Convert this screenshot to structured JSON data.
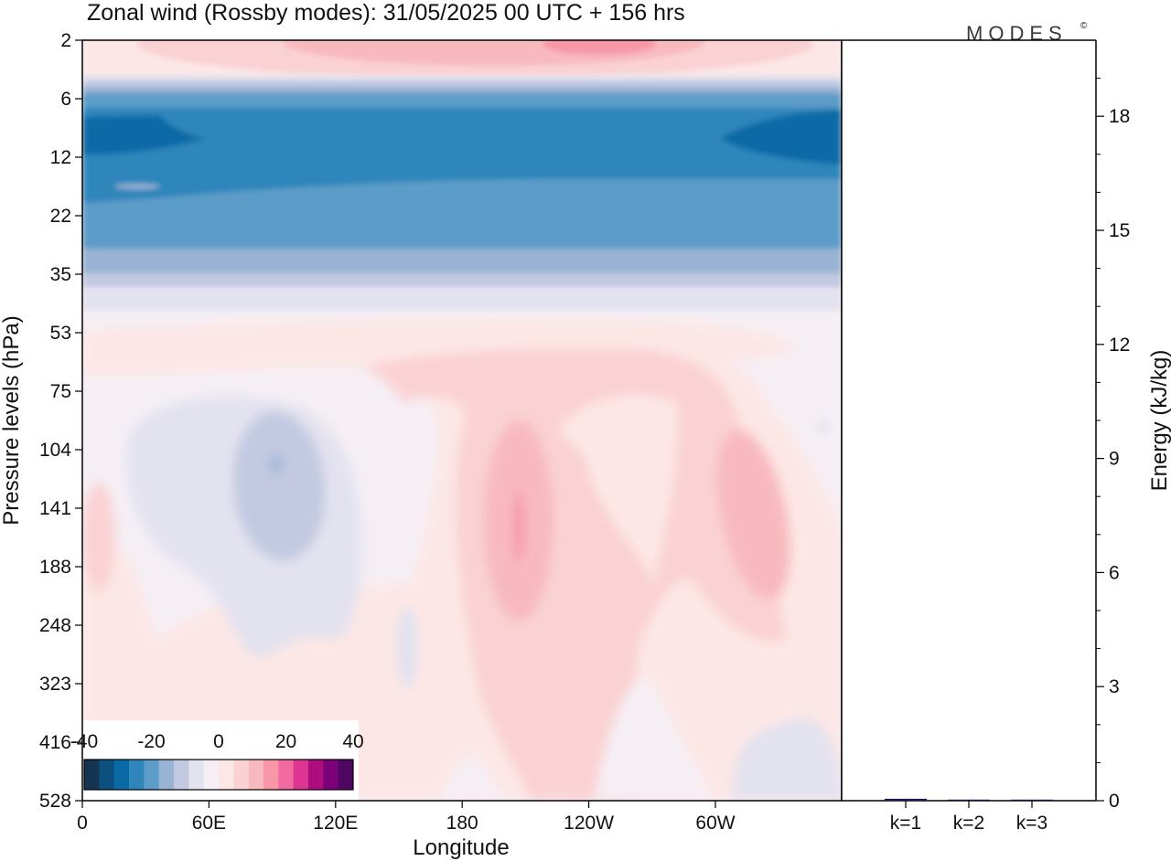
{
  "title": "Zonal wind (Rossby modes):  31/05/2025  00 UTC  + 156 hrs",
  "brand": "MODES",
  "brand_mark": "©",
  "chart_data": [
    {
      "type": "heatmap",
      "xlabel": "Longitude",
      "ylabel": "Pressure levels (hPa)",
      "x_ticks": [
        "0",
        "60E",
        "120E",
        "180",
        "120W",
        "60W"
      ],
      "y_ticks": [
        "2",
        "6",
        "12",
        "22",
        "35",
        "53",
        "75",
        "104",
        "141",
        "188",
        "248",
        "323",
        "416",
        "528"
      ],
      "colorbar": {
        "tick_labels": [
          "-40",
          "-20",
          "0",
          "20",
          "40"
        ],
        "range": [
          -40,
          40
        ],
        "colors": [
          "#14344f",
          "#0c507f",
          "#0a6aa6",
          "#2e86bb",
          "#5c9cc8",
          "#98b3d3",
          "#c2c9e1",
          "#e3e2ef",
          "#f5eff5",
          "#fde7e6",
          "#fad2d3",
          "#f8b9be",
          "#f797a7",
          "#f06a9f",
          "#dc3692",
          "#ae0d7f",
          "#7a0177",
          "#4e0660"
        ]
      }
    },
    {
      "type": "bar",
      "ylabel": "Energy (kJ/kg)",
      "categories": [
        "k=1",
        "k=2",
        "k=3"
      ],
      "values": [
        0.05,
        0.02,
        0.01
      ],
      "ylim": [
        0,
        20
      ],
      "y_ticks": [
        "0",
        "3",
        "6",
        "9",
        "12",
        "15",
        "18"
      ],
      "bar_color": "#1a1a4e"
    }
  ]
}
